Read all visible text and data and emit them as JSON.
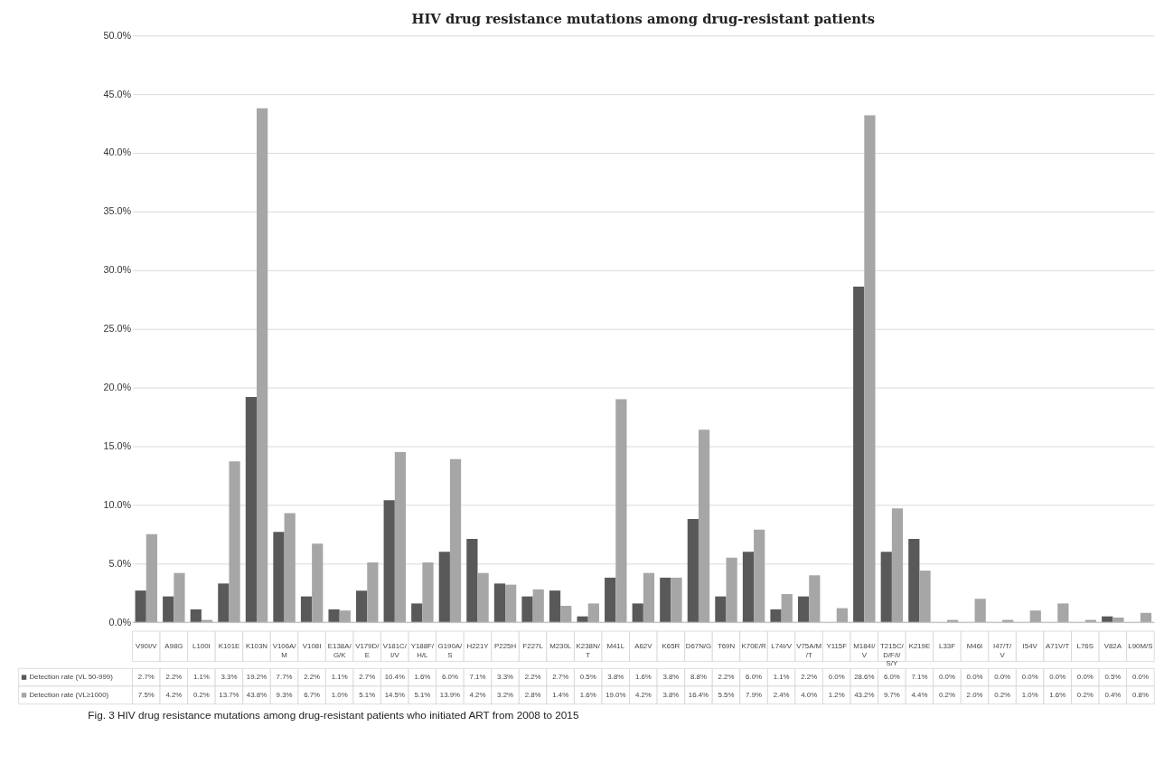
{
  "chart_data": {
    "type": "bar",
    "title": "HIV drug resistance mutations among drug-resistant patients",
    "categories": [
      "V90I/V",
      "A98G",
      "L100I",
      "K101E",
      "K103N",
      "V106A/M",
      "V108I",
      "E138A/G/K",
      "V179D/E",
      "V181C/I/V",
      "Y188F/H/L",
      "G190A/S",
      "H221Y",
      "P225H",
      "F227L",
      "M230L",
      "K238N/T",
      "M41L",
      "A62V",
      "K65R",
      "D67N/G",
      "T69N",
      "K70E/R",
      "L74I/V",
      "V75A/M/T",
      "Y115F",
      "M184I/V",
      "T215C/D/F/I/S/Y",
      "K219E",
      "L33F",
      "M46I",
      "I47/T/V",
      "I54V",
      "A71V/T",
      "L76S",
      "V82A",
      "L90M/S"
    ],
    "series": [
      {
        "name": "Detection rate (VL 50-999)",
        "color": "#595959",
        "values": [
          2.7,
          2.2,
          1.1,
          3.3,
          19.2,
          7.7,
          2.2,
          1.1,
          2.7,
          10.4,
          1.6,
          6.0,
          7.1,
          3.3,
          2.2,
          2.7,
          0.5,
          3.8,
          1.6,
          3.8,
          8.8,
          2.2,
          6.0,
          1.1,
          2.2,
          0.0,
          28.6,
          6.0,
          7.1,
          0.0,
          0.0,
          0.0,
          0.0,
          0.0,
          0.0,
          0.5,
          0.0
        ],
        "value_labels": [
          "2.7%",
          "2.2%",
          "1.1%",
          "3.3%",
          "19.2%",
          "7.7%",
          "2.2%",
          "1.1%",
          "2.7%",
          "10.4%",
          "1.6%",
          "6.0%",
          "7.1%",
          "3.3%",
          "2.2%",
          "2.7%",
          "0.5%",
          "3.8%",
          "1.6%",
          "3.8%",
          "8.8%",
          "2.2%",
          "6.0%",
          "1.1%",
          "2.2%",
          "0.0%",
          "28.6%",
          "6.0%",
          "7.1%",
          "0.0%",
          "0.0%",
          "0.0%",
          "0.0%",
          "0.0%",
          "0.0%",
          "0.5%",
          "0.0%"
        ]
      },
      {
        "name": "Detection rate (VL≥1000)",
        "color": "#a6a6a6",
        "values": [
          7.5,
          4.2,
          0.2,
          13.7,
          43.8,
          9.3,
          6.7,
          1.0,
          5.1,
          14.5,
          5.1,
          13.9,
          4.2,
          3.2,
          2.8,
          1.4,
          1.6,
          19.0,
          4.2,
          3.8,
          16.4,
          5.5,
          7.9,
          2.4,
          4.0,
          1.2,
          43.2,
          9.7,
          4.4,
          0.2,
          2.0,
          0.2,
          1.0,
          1.6,
          0.2,
          0.4,
          0.8
        ],
        "value_labels": [
          "7.5%",
          "4.2%",
          "0.2%",
          "13.7%",
          "43.8%",
          "9.3%",
          "6.7%",
          "1.0%",
          "5.1%",
          "14.5%",
          "5.1%",
          "13.9%",
          "4.2%",
          "3.2%",
          "2.8%",
          "1.4%",
          "1.6%",
          "19.0%",
          "4.2%",
          "3.8%",
          "16.4%",
          "5.5%",
          "7.9%",
          "2.4%",
          "4.0%",
          "1.2%",
          "43.2%",
          "9.7%",
          "4.4%",
          "0.2%",
          "2.0%",
          "0.2%",
          "1.0%",
          "1.6%",
          "0.2%",
          "0.4%",
          "0.8%"
        ]
      }
    ],
    "ylim": [
      0,
      50
    ],
    "yticks": [
      {
        "value": 0,
        "label": "0.0%"
      },
      {
        "value": 5,
        "label": "5.0%"
      },
      {
        "value": 10,
        "label": "10.0%"
      },
      {
        "value": 15,
        "label": "15.0%"
      },
      {
        "value": 20,
        "label": "20.0%"
      },
      {
        "value": 25,
        "label": "25.0%"
      },
      {
        "value": 30,
        "label": "30.0%"
      },
      {
        "value": 35,
        "label": "35.0%"
      },
      {
        "value": 40,
        "label": "40.0%"
      },
      {
        "value": 45,
        "label": "45.0%"
      },
      {
        "value": 50,
        "label": "50.0%"
      }
    ],
    "grid": "y",
    "legend": "bottom",
    "annotations": [
      "Fig. 3  HIV drug resistance mutations among drug-resistant patients who initiated ART from 2008 to 2015"
    ]
  }
}
